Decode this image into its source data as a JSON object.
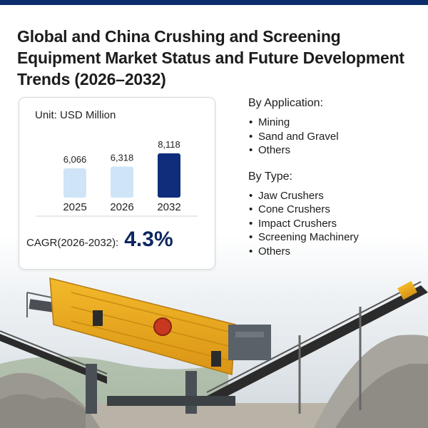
{
  "title": "Global and China Crushing and Screening Equipment Market Status and Future Development Trends (2026–2032)",
  "unit": "Unit: USD Million",
  "chart_data": {
    "type": "bar",
    "categories": [
      "2025",
      "2026",
      "2032"
    ],
    "values": [
      6066,
      6318,
      8118
    ],
    "data_labels": [
      "6,066",
      "6,318",
      "8,118"
    ],
    "colors": [
      "#cfe4f7",
      "#cfe4f7",
      "#0f2d7a"
    ],
    "ylim": [
      0,
      8500
    ]
  },
  "cagr": {
    "label": "CAGR(2026-2032):",
    "value": "4.3%"
  },
  "by_application": {
    "heading": "By Application:",
    "items": [
      "Mining",
      "Sand and Gravel",
      "Others"
    ]
  },
  "by_type": {
    "heading": "By Type:",
    "items": [
      "Jaw Crushers",
      "Cone Crushers",
      "Impact Crushers",
      "Screening Machinery",
      "Others"
    ]
  }
}
